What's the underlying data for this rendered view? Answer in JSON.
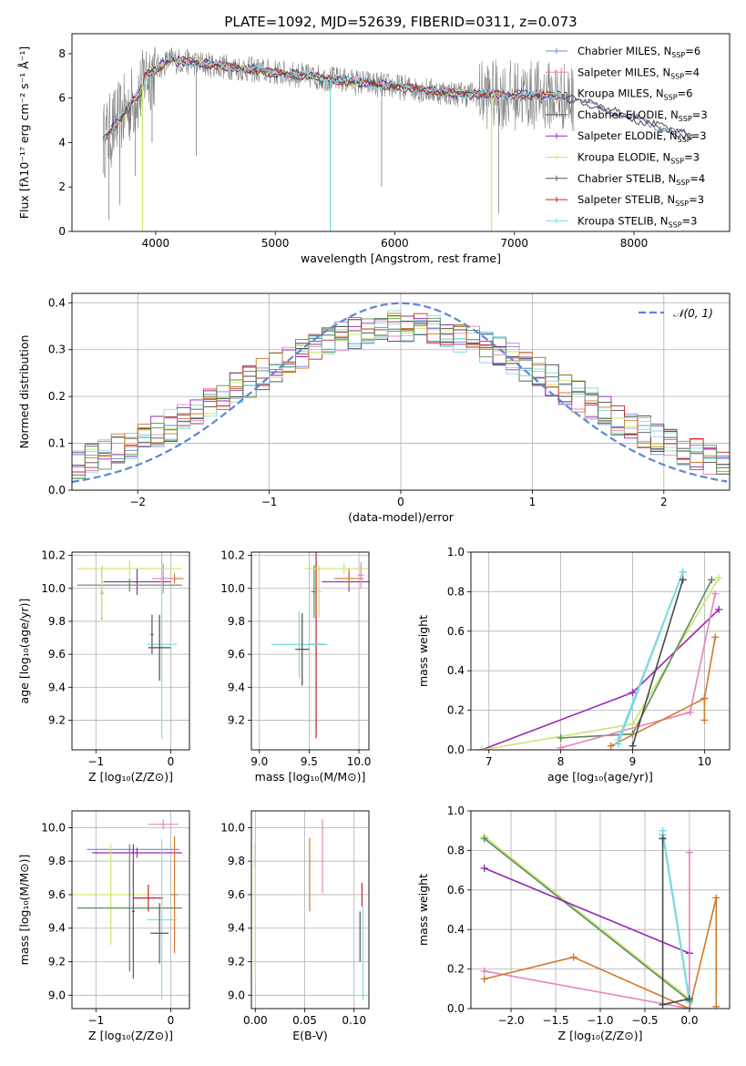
{
  "figure_title": "PLATE=1092, MJD=52639, FIBERID=0311, z=0.073",
  "colors": {
    "c1": "#6f86d8",
    "c2": "#e883bd",
    "c3": "#74dbe0",
    "c4": "#4a4a4a",
    "c5": "#9727b4",
    "c6": "#c9e76b",
    "c7": "#555555",
    "c8": "#c42626",
    "c9": "#88d7e6",
    "orange": "#d07a2c",
    "gray": "#808080",
    "green": "#5c8c5c"
  },
  "chart_data": [
    {
      "id": "spectrum",
      "type": "line",
      "title": "PLATE=1092, MJD=52639, FIBERID=0311, z=0.073",
      "xlabel": "wavelength [Angstrom, rest frame]",
      "ylabel": "Flux [fλ10⁻¹⁷ erg cm⁻² s⁻¹ Å⁻¹]",
      "xlim": [
        3300,
        8800
      ],
      "ylim": [
        0,
        8.9
      ],
      "xticks": [
        4000,
        5000,
        6000,
        7000,
        8000
      ],
      "yticks": [
        0,
        2,
        4,
        6,
        8
      ],
      "legend": [
        {
          "name": "Chabrier MILES, N",
          "sub": "SSP",
          "suffix": "=6",
          "color": "#6f86d8"
        },
        {
          "name": "Salpeter MILES, N",
          "sub": "SSP",
          "suffix": "=4",
          "color": "#e883bd"
        },
        {
          "name": "Kroupa MILES, N",
          "sub": "SSP",
          "suffix": "=6",
          "color": "#74dbe0"
        },
        {
          "name": "Chabrier ELODIE, N",
          "sub": "SSP",
          "suffix": "=3",
          "color": "#4a4a4a"
        },
        {
          "name": "Salpeter ELODIE, N",
          "sub": "SSP",
          "suffix": "=3",
          "color": "#9727b4"
        },
        {
          "name": "Kroupa ELODIE, N",
          "sub": "SSP",
          "suffix": "=3",
          "color": "#c9e76b"
        },
        {
          "name": "Chabrier STELIB, N",
          "sub": "SSP",
          "suffix": "=4",
          "color": "#555555"
        },
        {
          "name": "Salpeter STELIB, N",
          "sub": "SSP",
          "suffix": "=3",
          "color": "#c42626"
        },
        {
          "name": "Kroupa STELIB, N",
          "sub": "SSP",
          "suffix": "=3",
          "color": "#88d7e6"
        }
      ],
      "legend_position": "upper-right",
      "grid": false
    },
    {
      "id": "residuals",
      "type": "area",
      "xlabel": "(data-model)/error",
      "ylabel": "Normed distribution",
      "xlim": [
        -2.5,
        2.5
      ],
      "ylim": [
        0,
        0.42
      ],
      "xticks": [
        -2,
        -1,
        0,
        1,
        2
      ],
      "yticks": [
        0.0,
        0.1,
        0.2,
        0.3,
        0.4
      ],
      "legend": [
        {
          "name": "𝒩(0, 1)",
          "color": "#5b87d6",
          "style": "dashed"
        }
      ],
      "legend_position": "upper-right",
      "grid": true,
      "normal_mean": 0,
      "normal_sigma": 1
    },
    {
      "id": "age_vs_Z",
      "type": "scatter",
      "xlabel": "Z [log₁₀(Z/Z⊙)]",
      "ylabel": "age  [log₁₀(age/yr)]",
      "xlim": [
        -1.32,
        0.25
      ],
      "ylim": [
        9.02,
        10.22
      ],
      "xticks": [
        -1,
        0
      ],
      "yticks": [
        9.2,
        9.4,
        9.6,
        9.8,
        10.0,
        10.2
      ],
      "grid": true,
      "points": [
        {
          "x": 0.05,
          "y": 10.06,
          "xerr": 0.12,
          "yerr": 0.03,
          "color": "#d07a2c"
        },
        {
          "x": -0.1,
          "y": 10.06,
          "xerr": 0.15,
          "yerr": 0.09,
          "color": "#e883bd"
        },
        {
          "x": -0.45,
          "y": 10.04,
          "xerr": 0.45,
          "yerr": 0.08,
          "color": "#9727b4"
        },
        {
          "x": -0.55,
          "y": 10.12,
          "xerr": 0.7,
          "yerr": 0.05,
          "color": "#c9e76b"
        },
        {
          "x": -0.55,
          "y": 10.02,
          "xerr": 0.7,
          "yerr": 0.04,
          "color": "#5c8c5c"
        },
        {
          "x": -0.92,
          "y": 9.97,
          "xerr": 0.02,
          "yerr": 0.16,
          "color": "#5c8c5c"
        },
        {
          "x": -0.92,
          "y": 9.98,
          "xerr": 0.02,
          "yerr": 0.16,
          "color": "#c9e76b"
        },
        {
          "x": -0.12,
          "y": 9.66,
          "xerr": 0.2,
          "yerr": 0.57,
          "color": "#88d7e6"
        },
        {
          "x": -0.15,
          "y": 9.64,
          "xerr": 0.15,
          "yerr": 0.2,
          "color": "#4a4a4a"
        },
        {
          "x": -0.25,
          "y": 9.72,
          "xerr": 0.02,
          "yerr": 0.12,
          "color": "#555555"
        }
      ]
    },
    {
      "id": "age_vs_mass",
      "type": "scatter",
      "xlabel": "mass [log₁₀(M/M⊙)]",
      "ylabel": "",
      "xlim": [
        8.92,
        10.1
      ],
      "ylim": [
        9.02,
        10.22
      ],
      "xticks": [
        9.0,
        9.5,
        10.0
      ],
      "yticks": [
        9.2,
        9.4,
        9.6,
        9.8,
        10.0,
        10.2
      ],
      "grid": true,
      "points": [
        {
          "x": 9.57,
          "y": 9.66,
          "xerr": 0.08,
          "yerr": 0.57,
          "color": "#c42626"
        },
        {
          "x": 9.4,
          "y": 9.66,
          "xerr": 0.28,
          "yerr": 0.2,
          "color": "#74dbe0"
        },
        {
          "x": 9.43,
          "y": 9.63,
          "xerr": 0.07,
          "yerr": 0.22,
          "color": "#4a4a4a"
        },
        {
          "x": 9.55,
          "y": 9.98,
          "xerr": 0.03,
          "yerr": 0.16,
          "color": "#5c8c5c"
        },
        {
          "x": 9.6,
          "y": 9.98,
          "xerr": 0.03,
          "yerr": 0.16,
          "color": "#c9e76b"
        },
        {
          "x": 9.9,
          "y": 10.04,
          "xerr": 0.27,
          "yerr": 0.06,
          "color": "#9727b4"
        },
        {
          "x": 9.9,
          "y": 10.06,
          "xerr": 0.15,
          "yerr": 0.06,
          "color": "#d07a2c"
        },
        {
          "x": 9.85,
          "y": 10.12,
          "xerr": 0.4,
          "yerr": 0.03,
          "color": "#c9e76b"
        },
        {
          "x": 10.02,
          "y": 10.08,
          "xerr": 0.03,
          "yerr": 0.08,
          "color": "#e883bd"
        }
      ]
    },
    {
      "id": "weight_vs_age",
      "type": "line",
      "xlabel": "age  [log₁₀(age/yr)]",
      "ylabel": "mass weight",
      "xlim": [
        6.75,
        10.35
      ],
      "ylim": [
        0,
        1
      ],
      "xticks": [
        7,
        8,
        9,
        10
      ],
      "yticks": [
        0.0,
        0.2,
        0.4,
        0.6,
        0.8,
        1.0
      ],
      "grid": true,
      "series": [
        {
          "color": "#9727b4",
          "x": [
            6.9,
            9.0,
            10.2
          ],
          "y": [
            0.0,
            0.29,
            0.71
          ]
        },
        {
          "color": "#c9e76b",
          "x": [
            6.9,
            9.0,
            10.2
          ],
          "y": [
            0.0,
            0.13,
            0.87
          ]
        },
        {
          "color": "#5c8c5c",
          "x": [
            8.0,
            9.0,
            10.1
          ],
          "y": [
            0.06,
            0.08,
            0.86
          ]
        },
        {
          "color": "#e883bd",
          "x": [
            8.0,
            9.8,
            10.15
          ],
          "y": [
            0.01,
            0.19,
            0.79
          ]
        },
        {
          "color": "#d07a2c",
          "x": [
            8.7,
            10.0,
            10.15
          ],
          "y": [
            0.02,
            0.26,
            0.57
          ]
        },
        {
          "color": "#d07a2c",
          "x": [
            10.0,
            10.0
          ],
          "y": [
            0.15,
            0.26
          ]
        },
        {
          "color": "#88d7e6",
          "x": [
            8.8,
            9.7
          ],
          "y": [
            0.05,
            0.9
          ]
        },
        {
          "color": "#74dbe0",
          "x": [
            8.8,
            9.7
          ],
          "y": [
            0.03,
            0.9
          ]
        },
        {
          "color": "#4a4a4a",
          "x": [
            9.0,
            9.7
          ],
          "y": [
            0.02,
            0.86
          ]
        }
      ]
    },
    {
      "id": "mass_vs_Z",
      "type": "scatter",
      "xlabel": "Z [log₁₀(Z/Z⊙)]",
      "ylabel": "mass [log₁₀(M/M⊙)]",
      "xlim": [
        -1.32,
        0.25
      ],
      "ylim": [
        8.92,
        10.1
      ],
      "xticks": [
        -1,
        0
      ],
      "yticks": [
        9.0,
        9.2,
        9.4,
        9.6,
        9.8,
        10.0
      ],
      "grid": true,
      "points": [
        {
          "x": -0.5,
          "y": 9.87,
          "xerr": 0.62,
          "yerr": 0.03,
          "color": "#6f86d8"
        },
        {
          "x": -0.1,
          "y": 10.02,
          "xerr": 0.2,
          "yerr": 0.03,
          "color": "#e883bd"
        },
        {
          "x": -0.45,
          "y": 9.85,
          "xerr": 0.6,
          "yerr": 0.03,
          "color": "#9727b4"
        },
        {
          "x": 0.05,
          "y": 9.6,
          "xerr": 0.05,
          "yerr": 0.35,
          "color": "#d07a2c"
        },
        {
          "x": -0.8,
          "y": 9.6,
          "xerr": 0.5,
          "yerr": 0.3,
          "color": "#c9e76b"
        },
        {
          "x": -0.55,
          "y": 9.52,
          "xerr": 0.7,
          "yerr": 0.38,
          "color": "#5c8c5c"
        },
        {
          "x": -0.3,
          "y": 9.58,
          "xerr": 0.2,
          "yerr": 0.08,
          "color": "#c42626"
        },
        {
          "x": -0.5,
          "y": 9.5,
          "xerr": 0.02,
          "yerr": 0.4,
          "color": "#9727b4"
        },
        {
          "x": -0.12,
          "y": 9.45,
          "xerr": 0.2,
          "yerr": 0.48,
          "color": "#88d7e6"
        },
        {
          "x": -0.15,
          "y": 9.37,
          "xerr": 0.12,
          "yerr": 0.18,
          "color": "#555555"
        }
      ]
    },
    {
      "id": "mass_vs_EBV",
      "type": "scatter",
      "xlabel": "E(B-V)",
      "ylabel": "",
      "xlim": [
        -0.004,
        0.115
      ],
      "ylim": [
        8.92,
        10.1
      ],
      "xticks": [
        0.0,
        0.05,
        0.1
      ],
      "yticks": [
        9.0,
        9.2,
        9.4,
        9.6,
        9.8,
        10.0
      ],
      "grid": true,
      "points": [
        {
          "x": 0.0,
          "y": 9.84,
          "xerr": 0.0,
          "yerr": 0.07,
          "color": "#9727b4"
        },
        {
          "x": 0.0,
          "y": 9.5,
          "xerr": 0.0,
          "yerr": 0.42,
          "color": "#c9e76b"
        },
        {
          "x": 0.055,
          "y": 9.72,
          "xerr": 0.0,
          "yerr": 0.22,
          "color": "#d07a2c"
        },
        {
          "x": 0.068,
          "y": 9.83,
          "xerr": 0.0,
          "yerr": 0.22,
          "color": "#e883bd"
        },
        {
          "x": 0.108,
          "y": 9.6,
          "xerr": 0.0,
          "yerr": 0.07,
          "color": "#c42626"
        },
        {
          "x": 0.106,
          "y": 9.35,
          "xerr": 0.0,
          "yerr": 0.15,
          "color": "#555555"
        },
        {
          "x": 0.109,
          "y": 9.25,
          "xerr": 0.0,
          "yerr": 0.28,
          "color": "#88d7e6"
        }
      ]
    },
    {
      "id": "weight_vs_Z",
      "type": "line",
      "xlabel": "Z [log₁₀(Z/Z⊙)]",
      "ylabel": "mass weight",
      "xlim": [
        -2.45,
        0.45
      ],
      "ylim": [
        0,
        1
      ],
      "xticks": [
        -2.0,
        -1.5,
        -1.0,
        -0.5,
        0.0
      ],
      "yticks": [
        0.0,
        0.2,
        0.4,
        0.6,
        0.8,
        1.0
      ],
      "grid": true,
      "series": [
        {
          "color": "#c9e76b",
          "x": [
            -2.3,
            0.0
          ],
          "y": [
            0.87,
            0.05
          ]
        },
        {
          "color": "#5c8c5c",
          "x": [
            -2.3,
            0.0
          ],
          "y": [
            0.86,
            0.04
          ]
        },
        {
          "color": "#9727b4",
          "x": [
            -2.3,
            0.0
          ],
          "y": [
            0.71,
            0.28
          ]
        },
        {
          "color": "#e883bd",
          "x": [
            -2.3,
            0.0,
            0.0
          ],
          "y": [
            0.19,
            0.0,
            0.79
          ]
        },
        {
          "color": "#d07a2c",
          "x": [
            -2.3,
            -1.3,
            0.0,
            0.3,
            0.3
          ],
          "y": [
            0.15,
            0.26,
            0.0,
            0.56,
            0.01
          ]
        },
        {
          "color": "#88d7e6",
          "x": [
            -0.3,
            -0.3,
            0.0
          ],
          "y": [
            0.9,
            0.9,
            0.05
          ]
        },
        {
          "color": "#74dbe0",
          "x": [
            -0.3,
            0.0
          ],
          "y": [
            0.88,
            0.03
          ]
        },
        {
          "color": "#4a4a4a",
          "x": [
            -0.3,
            -0.3,
            0.0
          ],
          "y": [
            0.86,
            0.02,
            0.05
          ]
        }
      ]
    }
  ]
}
